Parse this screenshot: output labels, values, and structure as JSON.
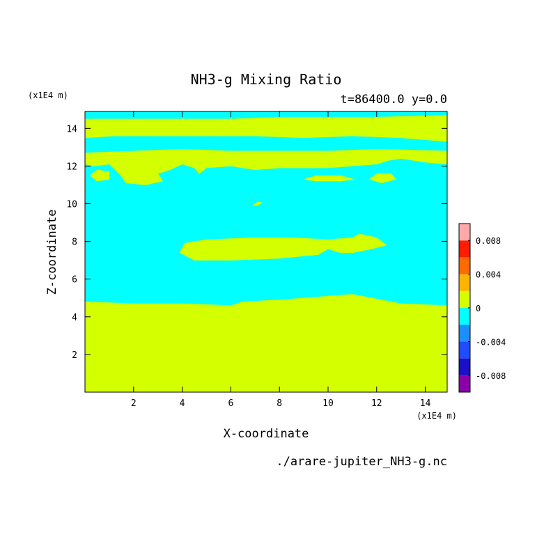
{
  "chart_data": {
    "type": "heatmap",
    "title": "NH3-g Mixing Ratio",
    "subtitle": "t=86400.0 y=0.0",
    "xlabel": "X-coordinate",
    "ylabel": "Z-coordinate",
    "x_unit": "(x1E4 m)",
    "z_unit": "(x1E4 m)",
    "xlim": [
      0,
      14.9
    ],
    "ylim": [
      0,
      14.9
    ],
    "x_ticks": [
      2,
      4,
      6,
      8,
      10,
      12,
      14
    ],
    "y_ticks": [
      2,
      4,
      6,
      8,
      10,
      12,
      14
    ],
    "x_tick_labels": [
      "2",
      "4",
      "6",
      "8",
      "10",
      "12",
      "14"
    ],
    "y_tick_labels": [
      "2",
      "4",
      "6",
      "8",
      "10",
      "12",
      "14"
    ],
    "colorbar": {
      "levels": [
        -0.01,
        -0.008,
        -0.006,
        -0.004,
        -0.002,
        0,
        0.002,
        0.004,
        0.006,
        0.008,
        0.01
      ],
      "colors": [
        "#8b00aa",
        "#1a10c8",
        "#1f4cff",
        "#1a90ff",
        "#00ffff",
        "#d4ff00",
        "#ffb400",
        "#ff6a00",
        "#ff1c00",
        "#ffaaaa"
      ],
      "tick_values": [
        0.008,
        0.004,
        0,
        -0.004,
        -0.008
      ],
      "tick_labels": [
        "0.008",
        "0.004",
        "0",
        "-0.004",
        "-0.008"
      ]
    },
    "regions": [
      {
        "level": "positive",
        "color": "#d4ff00",
        "description": "lower layer z<4.8",
        "polygon": [
          [
            0,
            0
          ],
          [
            14.9,
            0
          ],
          [
            14.9,
            4.6
          ],
          [
            13,
            4.7
          ],
          [
            11,
            5.2
          ],
          [
            10,
            5.1
          ],
          [
            8,
            4.9
          ],
          [
            6.5,
            4.8
          ],
          [
            6,
            4.6
          ],
          [
            4,
            4.7
          ],
          [
            2,
            4.7
          ],
          [
            0,
            4.8
          ]
        ]
      },
      {
        "level": "positive",
        "color": "#d4ff00",
        "description": "mid-level blob near z=7.5",
        "polygon": [
          [
            3.9,
            7.4
          ],
          [
            4.1,
            7.9
          ],
          [
            5,
            8.1
          ],
          [
            7,
            8.2
          ],
          [
            8.5,
            8.2
          ],
          [
            10,
            8.1
          ],
          [
            11,
            8.2
          ],
          [
            11.3,
            8.4
          ],
          [
            12,
            8.2
          ],
          [
            12.4,
            7.8
          ],
          [
            11.8,
            7.6
          ],
          [
            11,
            7.4
          ],
          [
            10.5,
            7.4
          ],
          [
            10,
            7.6
          ],
          [
            9.6,
            7.3
          ],
          [
            8,
            7.1
          ],
          [
            6,
            7.0
          ],
          [
            4.5,
            7.0
          ]
        ]
      },
      {
        "level": "positive",
        "color": "#d4ff00",
        "description": "small island near (7.1,10.0)",
        "polygon": [
          [
            6.9,
            9.9
          ],
          [
            7.1,
            10.1
          ],
          [
            7.3,
            10.05
          ],
          [
            7.1,
            9.92
          ]
        ]
      },
      {
        "level": "positive",
        "color": "#d4ff00",
        "description": "islands near z=11.4",
        "polygon": [
          [
            9.0,
            11.3
          ],
          [
            9.5,
            11.5
          ],
          [
            10.5,
            11.5
          ],
          [
            11.1,
            11.3
          ],
          [
            10.5,
            11.2
          ],
          [
            9.5,
            11.2
          ]
        ]
      },
      {
        "level": "positive",
        "color": "#d4ff00",
        "description": "island near (12,11.3)",
        "polygon": [
          [
            11.7,
            11.3
          ],
          [
            12,
            11.6
          ],
          [
            12.6,
            11.6
          ],
          [
            12.8,
            11.3
          ],
          [
            12.2,
            11.1
          ]
        ]
      },
      {
        "level": "positive",
        "color": "#d4ff00",
        "description": "left islands near z=11.5",
        "polygon": [
          [
            0.2,
            11.5
          ],
          [
            0.5,
            11.8
          ],
          [
            1,
            11.7
          ],
          [
            1,
            11.3
          ],
          [
            0.5,
            11.2
          ]
        ]
      },
      {
        "level": "positive",
        "color": "#d4ff00",
        "description": "upper band near z=12",
        "polygon": [
          [
            0,
            12.7
          ],
          [
            2,
            12.8
          ],
          [
            4,
            12.9
          ],
          [
            6,
            12.8
          ],
          [
            8,
            12.8
          ],
          [
            10,
            12.8
          ],
          [
            12,
            12.9
          ],
          [
            14.9,
            12.8
          ],
          [
            14.9,
            12.1
          ],
          [
            14,
            12.2
          ],
          [
            13,
            12.4
          ],
          [
            12.5,
            12.3
          ],
          [
            12,
            12.1
          ],
          [
            11,
            12.0
          ],
          [
            10,
            11.9
          ],
          [
            9,
            11.9
          ],
          [
            8,
            11.9
          ],
          [
            7,
            11.8
          ],
          [
            6,
            12.0
          ],
          [
            5,
            11.9
          ],
          [
            4.7,
            11.6
          ],
          [
            4.5,
            11.9
          ],
          [
            4,
            12.1
          ],
          [
            3.5,
            11.8
          ],
          [
            3,
            11.6
          ],
          [
            3.2,
            11.2
          ],
          [
            2.5,
            11.0
          ],
          [
            1.7,
            11.1
          ],
          [
            1.4,
            11.6
          ],
          [
            1.0,
            12.1
          ],
          [
            0.4,
            12.0
          ],
          [
            0,
            12.1
          ]
        ]
      },
      {
        "level": "positive",
        "color": "#d4ff00",
        "description": "top band near z=14",
        "polygon": [
          [
            0,
            14.5
          ],
          [
            2,
            14.5
          ],
          [
            4,
            14.5
          ],
          [
            6,
            14.5
          ],
          [
            8,
            14.6
          ],
          [
            10,
            14.6
          ],
          [
            12,
            14.6
          ],
          [
            14.9,
            14.7
          ],
          [
            14.9,
            13.3
          ],
          [
            13,
            13.5
          ],
          [
            11,
            13.6
          ],
          [
            9,
            13.5
          ],
          [
            7,
            13.6
          ],
          [
            5,
            13.6
          ],
          [
            3,
            13.6
          ],
          [
            1.2,
            13.6
          ],
          [
            0,
            13.5
          ]
        ]
      }
    ],
    "background_color": "#00ffff"
  },
  "footer": {
    "filename": "./arare-jupiter_NH3-g.nc"
  }
}
